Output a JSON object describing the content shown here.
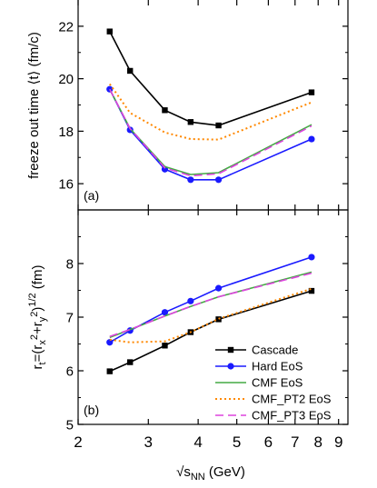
{
  "chart_data": [
    {
      "type": "line",
      "panel_label": "(a)",
      "ylabel": "freeze out time ⟨t⟩ (fm/c)",
      "xscale": "log",
      "xlim": [
        2,
        9.5
      ],
      "ylim": [
        15,
        23
      ],
      "yticks": [
        16,
        18,
        20,
        22
      ],
      "xticks": [
        2,
        3,
        4,
        5,
        6,
        7,
        8,
        9
      ],
      "grid": false,
      "series": [
        {
          "name": "Cascade",
          "color": "#000000",
          "style": "solid",
          "marker": "square",
          "x": [
            2.4,
            2.7,
            3.3,
            3.83,
            4.5,
            7.7
          ],
          "y": [
            21.8,
            20.3,
            18.8,
            18.35,
            18.22,
            19.48
          ]
        },
        {
          "name": "Hard EoS",
          "color": "#1a1aff",
          "style": "solid",
          "marker": "circle",
          "x": [
            2.4,
            2.7,
            3.3,
            3.83,
            4.5,
            7.7
          ],
          "y": [
            19.6,
            18.05,
            16.55,
            16.15,
            16.15,
            17.7
          ]
        },
        {
          "name": "CMF EoS",
          "color": "#44aa44",
          "style": "solid",
          "marker": "none",
          "x": [
            2.4,
            2.7,
            3.3,
            3.83,
            4.5,
            7.7
          ],
          "y": [
            19.6,
            18.1,
            16.65,
            16.35,
            16.42,
            18.25
          ]
        },
        {
          "name": "CMF_PT2 EoS",
          "color": "#ff8800",
          "style": "dotted",
          "marker": "none",
          "x": [
            2.4,
            2.7,
            3.3,
            3.83,
            4.5,
            7.7
          ],
          "y": [
            19.8,
            18.7,
            17.95,
            17.7,
            17.68,
            19.1
          ]
        },
        {
          "name": "CMF_PT3 EoS",
          "color": "#dd44dd",
          "style": "dashed",
          "marker": "none",
          "x": [
            2.4,
            2.7,
            3.3,
            3.83,
            4.5,
            7.7
          ],
          "y": [
            19.6,
            18.1,
            16.6,
            16.3,
            16.38,
            18.2
          ]
        }
      ]
    },
    {
      "type": "line",
      "panel_label": "(b)",
      "ylabel": "r_t=(r_x^2+r_y^2)^1/2 (fm)",
      "xlabel": "√s_NN (GeV)",
      "xscale": "log",
      "xlim": [
        2,
        9.5
      ],
      "ylim": [
        5,
        9
      ],
      "yticks": [
        5,
        6,
        7,
        8
      ],
      "xticks": [
        2,
        3,
        4,
        5,
        6,
        7,
        8,
        9
      ],
      "grid": false,
      "legend_position": "bottom-right",
      "series": [
        {
          "name": "Cascade",
          "color": "#000000",
          "style": "solid",
          "marker": "square",
          "x": [
            2.4,
            2.7,
            3.3,
            3.83,
            4.5,
            7.7
          ],
          "y": [
            5.99,
            6.16,
            6.47,
            6.72,
            6.96,
            7.49
          ]
        },
        {
          "name": "Hard EoS",
          "color": "#1a1aff",
          "style": "solid",
          "marker": "circle",
          "x": [
            2.4,
            2.7,
            3.3,
            3.83,
            4.5,
            7.7
          ],
          "y": [
            6.53,
            6.75,
            7.09,
            7.3,
            7.54,
            8.12
          ]
        },
        {
          "name": "CMF EoS",
          "color": "#44aa44",
          "style": "solid",
          "marker": "none",
          "x": [
            2.4,
            2.7,
            3.3,
            3.83,
            4.5,
            7.7
          ],
          "y": [
            6.62,
            6.77,
            7.02,
            7.2,
            7.38,
            7.84
          ]
        },
        {
          "name": "CMF_PT2 EoS",
          "color": "#ff8800",
          "style": "dotted",
          "marker": "none",
          "x": [
            2.4,
            2.7,
            3.3,
            3.83,
            4.5,
            7.7
          ],
          "y": [
            6.58,
            6.53,
            6.55,
            6.72,
            6.97,
            7.53
          ]
        },
        {
          "name": "CMF_PT3 EoS",
          "color": "#dd44dd",
          "style": "dashed",
          "marker": "none",
          "x": [
            2.4,
            2.7,
            3.3,
            3.83,
            4.5,
            7.7
          ],
          "y": [
            6.64,
            6.77,
            7.02,
            7.2,
            7.38,
            7.82
          ]
        }
      ]
    }
  ]
}
